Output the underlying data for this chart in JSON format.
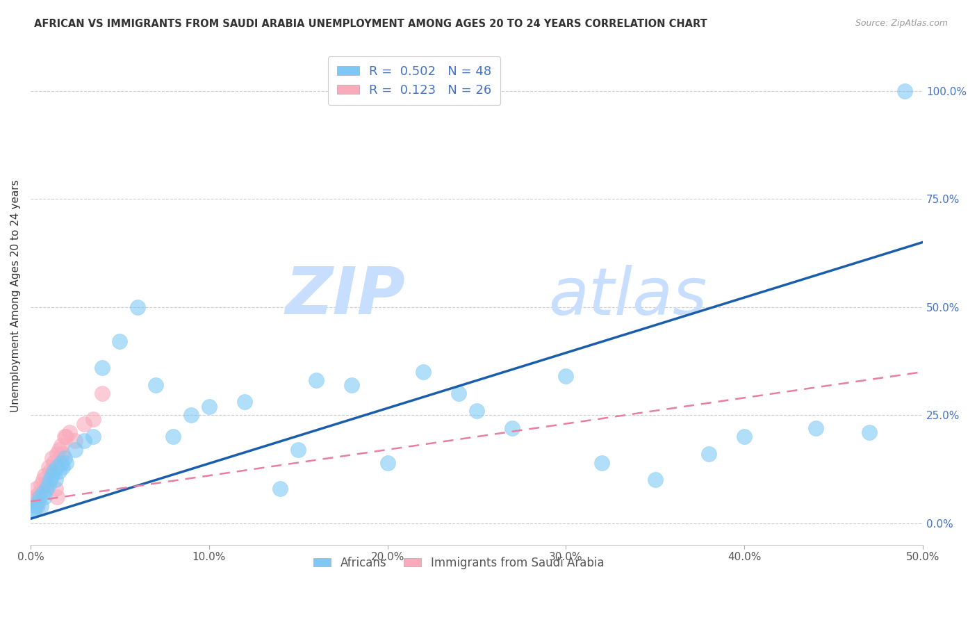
{
  "title": "AFRICAN VS IMMIGRANTS FROM SAUDI ARABIA UNEMPLOYMENT AMONG AGES 20 TO 24 YEARS CORRELATION CHART",
  "source": "Source: ZipAtlas.com",
  "ylabel": "Unemployment Among Ages 20 to 24 years",
  "xlabel_ticks": [
    "0.0%",
    "",
    "10.0%",
    "",
    "20.0%",
    "",
    "30.0%",
    "",
    "40.0%",
    "",
    "50.0%"
  ],
  "xlabel_vals": [
    0.0,
    0.05,
    0.1,
    0.15,
    0.2,
    0.25,
    0.3,
    0.35,
    0.4,
    0.45,
    0.5
  ],
  "xlabel_show_ticks": [
    0.0,
    0.1,
    0.2,
    0.3,
    0.4,
    0.5
  ],
  "xlabel_show_labels": [
    "0.0%",
    "10.0%",
    "20.0%",
    "30.0%",
    "40.0%",
    "50.0%"
  ],
  "ylabel_ticks_right": [
    "0.0%",
    "25.0%",
    "50.0%",
    "75.0%",
    "100.0%"
  ],
  "ylabel_vals_right": [
    0.0,
    0.25,
    0.5,
    0.75,
    1.0
  ],
  "africans_color": "#7EC8F5",
  "saudi_color": "#F9AABB",
  "blue_line_color": "#1A5EAB",
  "pink_line_color": "#E87FA0",
  "watermark_zip": "ZIP",
  "watermark_atlas": "atlas",
  "watermark_color": "#DDEEFF",
  "africans_x": [
    0.001,
    0.002,
    0.003,
    0.004,
    0.005,
    0.006,
    0.007,
    0.008,
    0.009,
    0.01,
    0.011,
    0.012,
    0.013,
    0.014,
    0.015,
    0.016,
    0.017,
    0.018,
    0.019,
    0.02,
    0.025,
    0.03,
    0.035,
    0.04,
    0.05,
    0.06,
    0.07,
    0.08,
    0.09,
    0.1,
    0.12,
    0.14,
    0.15,
    0.16,
    0.18,
    0.2,
    0.22,
    0.24,
    0.25,
    0.27,
    0.3,
    0.32,
    0.35,
    0.38,
    0.4,
    0.44,
    0.47,
    0.49
  ],
  "africans_y": [
    0.03,
    0.03,
    0.04,
    0.05,
    0.06,
    0.04,
    0.07,
    0.06,
    0.08,
    0.09,
    0.1,
    0.11,
    0.12,
    0.1,
    0.13,
    0.12,
    0.14,
    0.13,
    0.15,
    0.14,
    0.17,
    0.19,
    0.2,
    0.36,
    0.42,
    0.5,
    0.32,
    0.2,
    0.25,
    0.27,
    0.28,
    0.08,
    0.17,
    0.33,
    0.32,
    0.14,
    0.35,
    0.3,
    0.26,
    0.22,
    0.34,
    0.14,
    0.1,
    0.16,
    0.2,
    0.22,
    0.21,
    1.0
  ],
  "saudi_x": [
    0.001,
    0.002,
    0.003,
    0.004,
    0.005,
    0.006,
    0.007,
    0.008,
    0.009,
    0.01,
    0.011,
    0.012,
    0.013,
    0.014,
    0.015,
    0.015,
    0.016,
    0.017,
    0.018,
    0.019,
    0.02,
    0.022,
    0.025,
    0.03,
    0.035,
    0.04
  ],
  "saudi_y": [
    0.05,
    0.06,
    0.08,
    0.04,
    0.07,
    0.09,
    0.1,
    0.11,
    0.09,
    0.13,
    0.12,
    0.15,
    0.14,
    0.08,
    0.16,
    0.06,
    0.17,
    0.18,
    0.16,
    0.2,
    0.2,
    0.21,
    0.19,
    0.23,
    0.24,
    0.3
  ],
  "blue_line_x0": 0.0,
  "blue_line_y0": 0.01,
  "blue_line_x1": 0.5,
  "blue_line_y1": 0.65,
  "pink_line_x0": 0.0,
  "pink_line_y0": 0.05,
  "pink_line_x1": 0.5,
  "pink_line_y1": 0.35,
  "xmin": 0.0,
  "xmax": 0.5,
  "ymin": -0.05,
  "ymax": 1.1,
  "grid_color": "#CCCCCC",
  "tick_color": "#AAAAAA"
}
